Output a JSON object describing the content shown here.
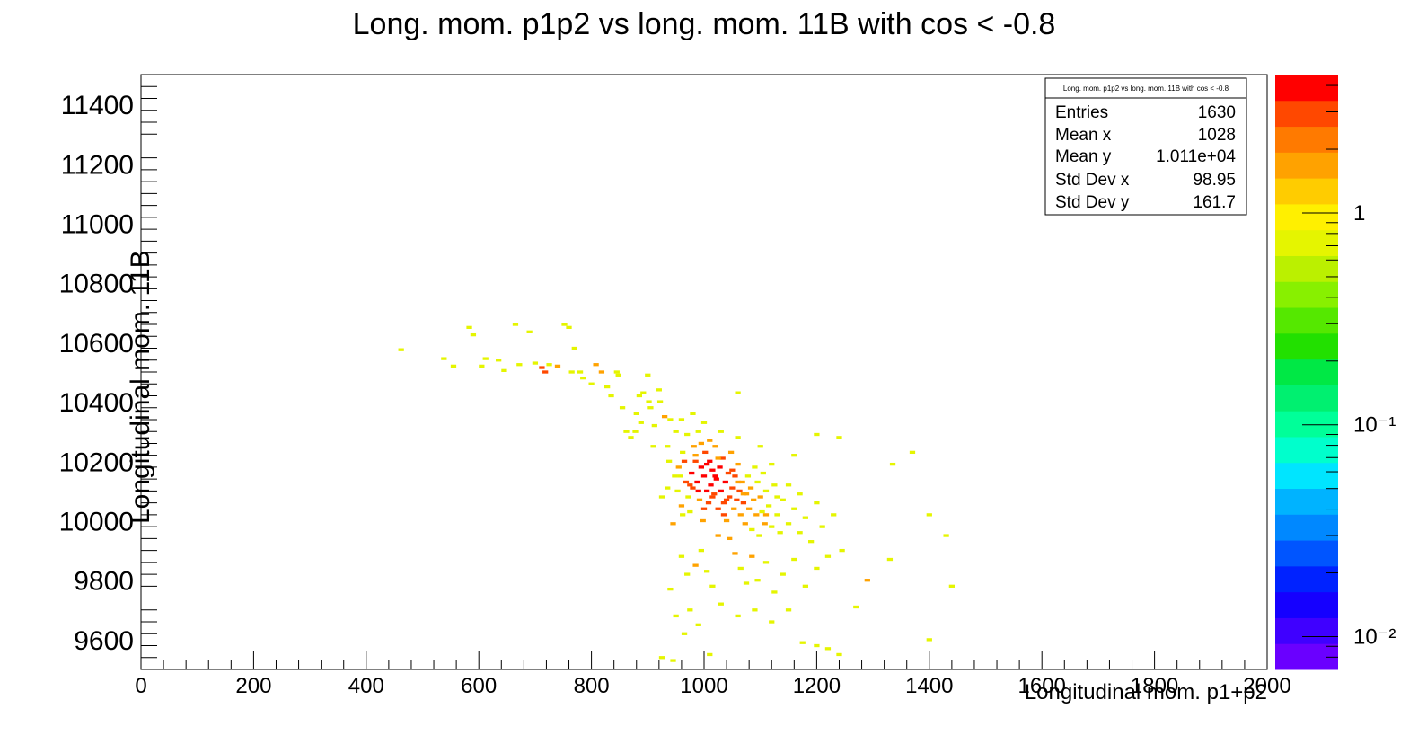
{
  "chart_data": {
    "type": "heatmap",
    "title": "Long.  mom. p1p2 vs long. mom. 11B with cos < -0.8",
    "xlabel": "Longitudinal mom. p1+p2",
    "ylabel": "Longitudinal mom. 11B",
    "xlim": [
      0,
      2000
    ],
    "ylim": [
      9500,
      11500
    ],
    "x_ticks": [
      "0",
      "200",
      "400",
      "600",
      "800",
      "1000",
      "1200",
      "1400",
      "1600",
      "1800",
      "2000"
    ],
    "y_ticks": [
      "9600",
      "9800",
      "10000",
      "10200",
      "10400",
      "10600",
      "10800",
      "11000",
      "11200",
      "11400"
    ],
    "z_scale": "log",
    "z_ticks": [
      {
        "label": "1",
        "value": 1
      },
      {
        "label": "10⁻¹",
        "value": 0.1
      },
      {
        "label": "10⁻²",
        "value": 0.01
      }
    ],
    "z_range": [
      0.007,
      4.5
    ],
    "palette": [
      "#6a00ff",
      "#3f00ff",
      "#1500ff",
      "#0022ff",
      "#0055ff",
      "#0088ff",
      "#00b3ff",
      "#00e5ff",
      "#00ffcc",
      "#00ff99",
      "#00f070",
      "#00e845",
      "#22e000",
      "#55e800",
      "#88f000",
      "#bbf000",
      "#e5f500",
      "#fff000",
      "#ffcc00",
      "#ffa200",
      "#ff7a00",
      "#ff4800",
      "#ff0000"
    ],
    "stats_box": {
      "title": "Long.  mom. p1p2 vs long. mom. 11B with cos < -0.8",
      "rows": [
        {
          "label": "Entries",
          "value": "1630"
        },
        {
          "label": "Mean x",
          "value": "1028"
        },
        {
          "label": "Mean y",
          "value": "1.011e+04"
        },
        {
          "label": "Std Dev x",
          "value": "98.95"
        },
        {
          "label": "Std Dev y",
          "value": "161.7"
        }
      ]
    },
    "points": [
      {
        "x": 462,
        "y": 10575,
        "z": 1
      },
      {
        "x": 538,
        "y": 10545,
        "z": 1
      },
      {
        "x": 555,
        "y": 10520,
        "z": 1
      },
      {
        "x": 583,
        "y": 10650,
        "z": 1
      },
      {
        "x": 590,
        "y": 10625,
        "z": 1
      },
      {
        "x": 605,
        "y": 10520,
        "z": 1
      },
      {
        "x": 612,
        "y": 10545,
        "z": 1
      },
      {
        "x": 635,
        "y": 10540,
        "z": 1
      },
      {
        "x": 645,
        "y": 10505,
        "z": 1
      },
      {
        "x": 665,
        "y": 10660,
        "z": 1
      },
      {
        "x": 672,
        "y": 10525,
        "z": 1
      },
      {
        "x": 690,
        "y": 10635,
        "z": 1
      },
      {
        "x": 700,
        "y": 10530,
        "z": 1
      },
      {
        "x": 712,
        "y": 10515,
        "z": 3
      },
      {
        "x": 718,
        "y": 10500,
        "z": 3
      },
      {
        "x": 725,
        "y": 10525,
        "z": 1
      },
      {
        "x": 740,
        "y": 10520,
        "z": 2
      },
      {
        "x": 752,
        "y": 10660,
        "z": 1
      },
      {
        "x": 760,
        "y": 10650,
        "z": 1
      },
      {
        "x": 765,
        "y": 10500,
        "z": 1
      },
      {
        "x": 770,
        "y": 10580,
        "z": 1
      },
      {
        "x": 780,
        "y": 10500,
        "z": 1
      },
      {
        "x": 785,
        "y": 10480,
        "z": 1
      },
      {
        "x": 800,
        "y": 10460,
        "z": 1
      },
      {
        "x": 808,
        "y": 10525,
        "z": 2
      },
      {
        "x": 818,
        "y": 10500,
        "z": 2
      },
      {
        "x": 828,
        "y": 10450,
        "z": 1
      },
      {
        "x": 835,
        "y": 10420,
        "z": 1
      },
      {
        "x": 845,
        "y": 10500,
        "z": 1
      },
      {
        "x": 848,
        "y": 10490,
        "z": 1
      },
      {
        "x": 855,
        "y": 10380,
        "z": 1
      },
      {
        "x": 862,
        "y": 10300,
        "z": 1
      },
      {
        "x": 870,
        "y": 10280,
        "z": 1
      },
      {
        "x": 878,
        "y": 10300,
        "z": 1
      },
      {
        "x": 885,
        "y": 10420,
        "z": 1
      },
      {
        "x": 888,
        "y": 10330,
        "z": 1
      },
      {
        "x": 892,
        "y": 10430,
        "z": 1
      },
      {
        "x": 900,
        "y": 10490,
        "z": 1
      },
      {
        "x": 902,
        "y": 10400,
        "z": 1
      },
      {
        "x": 905,
        "y": 10380,
        "z": 1
      },
      {
        "x": 910,
        "y": 10250,
        "z": 1
      },
      {
        "x": 912,
        "y": 10320,
        "z": 1
      },
      {
        "x": 920,
        "y": 10440,
        "z": 1
      },
      {
        "x": 922,
        "y": 10400,
        "z": 1
      },
      {
        "x": 925,
        "y": 10080,
        "z": 1
      },
      {
        "x": 930,
        "y": 10350,
        "z": 2
      },
      {
        "x": 935,
        "y": 10250,
        "z": 1
      },
      {
        "x": 938,
        "y": 10200,
        "z": 1
      },
      {
        "x": 940,
        "y": 10340,
        "z": 1
      },
      {
        "x": 945,
        "y": 9990,
        "z": 2
      },
      {
        "x": 948,
        "y": 10150,
        "z": 1
      },
      {
        "x": 950,
        "y": 10300,
        "z": 1
      },
      {
        "x": 953,
        "y": 10100,
        "z": 1
      },
      {
        "x": 958,
        "y": 10150,
        "z": 1
      },
      {
        "x": 960,
        "y": 10050,
        "z": 2
      },
      {
        "x": 962,
        "y": 10230,
        "z": 1
      },
      {
        "x": 965,
        "y": 10200,
        "z": 3
      },
      {
        "x": 968,
        "y": 10130,
        "z": 3
      },
      {
        "x": 970,
        "y": 10290,
        "z": 1
      },
      {
        "x": 972,
        "y": 10080,
        "z": 1
      },
      {
        "x": 975,
        "y": 10030,
        "z": 1
      },
      {
        "x": 978,
        "y": 10160,
        "z": 4
      },
      {
        "x": 980,
        "y": 10110,
        "z": 3
      },
      {
        "x": 982,
        "y": 10250,
        "z": 2
      },
      {
        "x": 985,
        "y": 10200,
        "z": 3
      },
      {
        "x": 988,
        "y": 10130,
        "z": 4
      },
      {
        "x": 990,
        "y": 10300,
        "z": 1
      },
      {
        "x": 992,
        "y": 10070,
        "z": 2
      },
      {
        "x": 995,
        "y": 10180,
        "z": 4
      },
      {
        "x": 998,
        "y": 10000,
        "z": 2
      },
      {
        "x": 1000,
        "y": 10150,
        "z": 4
      },
      {
        "x": 1002,
        "y": 10230,
        "z": 3
      },
      {
        "x": 1005,
        "y": 10100,
        "z": 4
      },
      {
        "x": 1008,
        "y": 10060,
        "z": 3
      },
      {
        "x": 1010,
        "y": 10200,
        "z": 4
      },
      {
        "x": 1012,
        "y": 10120,
        "z": 4
      },
      {
        "x": 1015,
        "y": 10170,
        "z": 4
      },
      {
        "x": 1018,
        "y": 10090,
        "z": 3
      },
      {
        "x": 1020,
        "y": 10250,
        "z": 2
      },
      {
        "x": 1022,
        "y": 10140,
        "z": 4
      },
      {
        "x": 1025,
        "y": 10040,
        "z": 3
      },
      {
        "x": 1028,
        "y": 10180,
        "z": 4
      },
      {
        "x": 1030,
        "y": 10100,
        "z": 4
      },
      {
        "x": 1033,
        "y": 10210,
        "z": 3
      },
      {
        "x": 1035,
        "y": 10060,
        "z": 3
      },
      {
        "x": 1038,
        "y": 10130,
        "z": 4
      },
      {
        "x": 1040,
        "y": 10000,
        "z": 2
      },
      {
        "x": 1043,
        "y": 10160,
        "z": 3
      },
      {
        "x": 1045,
        "y": 10080,
        "z": 3
      },
      {
        "x": 1048,
        "y": 10230,
        "z": 2
      },
      {
        "x": 1050,
        "y": 10110,
        "z": 3
      },
      {
        "x": 1053,
        "y": 10040,
        "z": 2
      },
      {
        "x": 1055,
        "y": 10150,
        "z": 3
      },
      {
        "x": 1058,
        "y": 10070,
        "z": 3
      },
      {
        "x": 1060,
        "y": 10190,
        "z": 2
      },
      {
        "x": 1063,
        "y": 10100,
        "z": 3
      },
      {
        "x": 1065,
        "y": 10020,
        "z": 2
      },
      {
        "x": 1068,
        "y": 10130,
        "z": 2
      },
      {
        "x": 1070,
        "y": 10060,
        "z": 3
      },
      {
        "x": 1073,
        "y": 9990,
        "z": 2
      },
      {
        "x": 1075,
        "y": 10090,
        "z": 2
      },
      {
        "x": 1078,
        "y": 10150,
        "z": 1
      },
      {
        "x": 1080,
        "y": 10040,
        "z": 2
      },
      {
        "x": 1083,
        "y": 10110,
        "z": 2
      },
      {
        "x": 1085,
        "y": 9970,
        "z": 1
      },
      {
        "x": 1088,
        "y": 10070,
        "z": 2
      },
      {
        "x": 1090,
        "y": 10180,
        "z": 1
      },
      {
        "x": 1093,
        "y": 10020,
        "z": 2
      },
      {
        "x": 1095,
        "y": 10130,
        "z": 1
      },
      {
        "x": 1098,
        "y": 9950,
        "z": 1
      },
      {
        "x": 1100,
        "y": 10080,
        "z": 2
      },
      {
        "x": 1103,
        "y": 10030,
        "z": 1
      },
      {
        "x": 1105,
        "y": 10160,
        "z": 1
      },
      {
        "x": 1108,
        "y": 9990,
        "z": 2
      },
      {
        "x": 1110,
        "y": 10100,
        "z": 1
      },
      {
        "x": 1115,
        "y": 10050,
        "z": 1
      },
      {
        "x": 1120,
        "y": 9980,
        "z": 1
      },
      {
        "x": 1125,
        "y": 10120,
        "z": 1
      },
      {
        "x": 1130,
        "y": 10020,
        "z": 1
      },
      {
        "x": 1135,
        "y": 9960,
        "z": 1
      },
      {
        "x": 1140,
        "y": 10070,
        "z": 1
      },
      {
        "x": 1150,
        "y": 9990,
        "z": 1
      },
      {
        "x": 1160,
        "y": 10040,
        "z": 1
      },
      {
        "x": 1170,
        "y": 9960,
        "z": 1
      },
      {
        "x": 1180,
        "y": 10010,
        "z": 1
      },
      {
        "x": 1190,
        "y": 9930,
        "z": 1
      },
      {
        "x": 1200,
        "y": 10060,
        "z": 1
      },
      {
        "x": 1210,
        "y": 9980,
        "z": 1
      },
      {
        "x": 1230,
        "y": 10020,
        "z": 1
      },
      {
        "x": 1245,
        "y": 9900,
        "z": 1
      },
      {
        "x": 1290,
        "y": 9800,
        "z": 2
      },
      {
        "x": 1035,
        "y": 10020,
        "z": 3
      },
      {
        "x": 1045,
        "y": 9940,
        "z": 2
      },
      {
        "x": 1055,
        "y": 9890,
        "z": 2
      },
      {
        "x": 1065,
        "y": 9840,
        "z": 1
      },
      {
        "x": 1075,
        "y": 9790,
        "z": 1
      },
      {
        "x": 1085,
        "y": 9880,
        "z": 2
      },
      {
        "x": 1095,
        "y": 9800,
        "z": 1
      },
      {
        "x": 1110,
        "y": 9860,
        "z": 1
      },
      {
        "x": 1125,
        "y": 9760,
        "z": 1
      },
      {
        "x": 1140,
        "y": 9820,
        "z": 1
      },
      {
        "x": 1160,
        "y": 9870,
        "z": 1
      },
      {
        "x": 1180,
        "y": 9780,
        "z": 1
      },
      {
        "x": 1200,
        "y": 9840,
        "z": 1
      },
      {
        "x": 1220,
        "y": 9880,
        "z": 1
      },
      {
        "x": 960,
        "y": 9880,
        "z": 1
      },
      {
        "x": 970,
        "y": 9820,
        "z": 1
      },
      {
        "x": 985,
        "y": 9850,
        "z": 2
      },
      {
        "x": 995,
        "y": 9900,
        "z": 1
      },
      {
        "x": 1005,
        "y": 9830,
        "z": 1
      },
      {
        "x": 1015,
        "y": 9780,
        "z": 1
      },
      {
        "x": 1025,
        "y": 9950,
        "z": 2
      },
      {
        "x": 940,
        "y": 9770,
        "z": 1
      },
      {
        "x": 950,
        "y": 9680,
        "z": 1
      },
      {
        "x": 965,
        "y": 9620,
        "z": 1
      },
      {
        "x": 975,
        "y": 9700,
        "z": 1
      },
      {
        "x": 990,
        "y": 9650,
        "z": 1
      },
      {
        "x": 1030,
        "y": 9720,
        "z": 1
      },
      {
        "x": 1060,
        "y": 9680,
        "z": 1
      },
      {
        "x": 1090,
        "y": 9700,
        "z": 1
      },
      {
        "x": 1120,
        "y": 9660,
        "z": 1
      },
      {
        "x": 1150,
        "y": 9700,
        "z": 1
      },
      {
        "x": 1175,
        "y": 9590,
        "z": 1
      },
      {
        "x": 1200,
        "y": 9580,
        "z": 1
      },
      {
        "x": 1220,
        "y": 9570,
        "z": 1
      },
      {
        "x": 1240,
        "y": 9550,
        "z": 1
      },
      {
        "x": 1270,
        "y": 9710,
        "z": 1
      },
      {
        "x": 1330,
        "y": 9870,
        "z": 1
      },
      {
        "x": 1335,
        "y": 10190,
        "z": 1
      },
      {
        "x": 1370,
        "y": 10230,
        "z": 1
      },
      {
        "x": 1400,
        "y": 10020,
        "z": 1
      },
      {
        "x": 1430,
        "y": 9950,
        "z": 1
      },
      {
        "x": 1440,
        "y": 9780,
        "z": 1
      },
      {
        "x": 1400,
        "y": 9600,
        "z": 1
      },
      {
        "x": 1240,
        "y": 10280,
        "z": 1
      },
      {
        "x": 1200,
        "y": 10290,
        "z": 1
      },
      {
        "x": 1160,
        "y": 10220,
        "z": 1
      },
      {
        "x": 1120,
        "y": 10190,
        "z": 1
      },
      {
        "x": 1100,
        "y": 10250,
        "z": 1
      },
      {
        "x": 1060,
        "y": 10280,
        "z": 1
      },
      {
        "x": 1030,
        "y": 10300,
        "z": 1
      },
      {
        "x": 1010,
        "y": 10270,
        "z": 2
      },
      {
        "x": 1000,
        "y": 10330,
        "z": 1
      },
      {
        "x": 980,
        "y": 10360,
        "z": 1
      },
      {
        "x": 960,
        "y": 10340,
        "z": 1
      },
      {
        "x": 1060,
        "y": 10430,
        "z": 1
      },
      {
        "x": 925,
        "y": 9540,
        "z": 1
      },
      {
        "x": 945,
        "y": 9530,
        "z": 1
      },
      {
        "x": 1010,
        "y": 9550,
        "z": 1
      },
      {
        "x": 880,
        "y": 10360,
        "z": 1
      },
      {
        "x": 1000,
        "y": 10040,
        "z": 3
      },
      {
        "x": 990,
        "y": 10100,
        "z": 4
      },
      {
        "x": 1020,
        "y": 10150,
        "z": 4
      },
      {
        "x": 1005,
        "y": 10190,
        "z": 4
      },
      {
        "x": 975,
        "y": 10120,
        "z": 3
      },
      {
        "x": 1015,
        "y": 10080,
        "z": 3
      },
      {
        "x": 1040,
        "y": 10070,
        "z": 3
      },
      {
        "x": 1050,
        "y": 10170,
        "z": 3
      },
      {
        "x": 985,
        "y": 10220,
        "z": 2
      },
      {
        "x": 995,
        "y": 10260,
        "z": 2
      },
      {
        "x": 1025,
        "y": 10210,
        "z": 2
      },
      {
        "x": 1060,
        "y": 10130,
        "z": 2
      },
      {
        "x": 1070,
        "y": 10090,
        "z": 2
      },
      {
        "x": 955,
        "y": 10180,
        "z": 2
      },
      {
        "x": 962,
        "y": 10020,
        "z": 1
      },
      {
        "x": 935,
        "y": 10110,
        "z": 1
      },
      {
        "x": 1110,
        "y": 10020,
        "z": 2
      },
      {
        "x": 1130,
        "y": 10080,
        "z": 1
      },
      {
        "x": 1150,
        "y": 10120,
        "z": 1
      },
      {
        "x": 1170,
        "y": 10090,
        "z": 1
      }
    ]
  }
}
